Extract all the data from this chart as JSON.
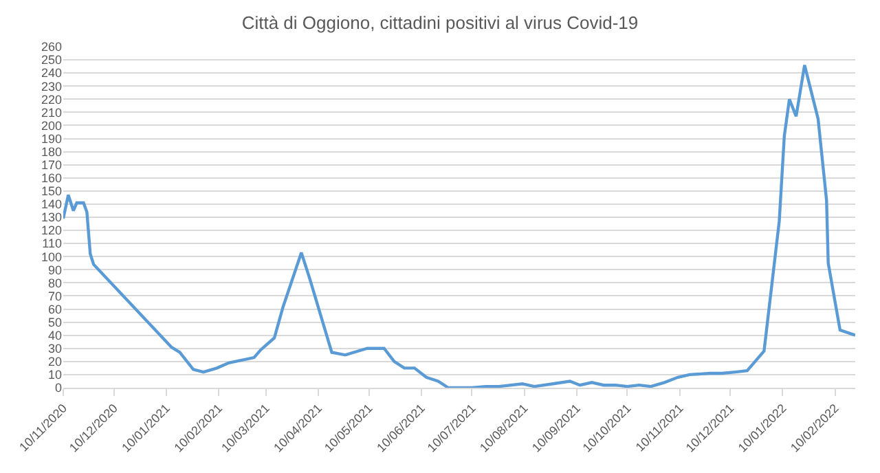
{
  "chart_data": {
    "type": "line",
    "title": "Città di Oggiono, cittadini positivi al virus Covid-19",
    "x": [
      "2020-11-10",
      "2020-11-13",
      "2020-11-16",
      "2020-11-18",
      "2020-11-22",
      "2020-11-24",
      "2020-11-26",
      "2020-11-28",
      "2021-01-13",
      "2021-01-18",
      "2021-01-26",
      "2021-02-01",
      "2021-02-09",
      "2021-02-16",
      "2021-03-03",
      "2021-03-07",
      "2021-03-15",
      "2021-03-20",
      "2021-03-31",
      "2021-04-05",
      "2021-04-18",
      "2021-04-26",
      "2021-05-09",
      "2021-05-19",
      "2021-05-25",
      "2021-05-31",
      "2021-06-06",
      "2021-06-13",
      "2021-06-20",
      "2021-06-26",
      "2021-07-10",
      "2021-07-18",
      "2021-07-26",
      "2021-08-09",
      "2021-08-16",
      "2021-08-27",
      "2021-09-06",
      "2021-09-12",
      "2021-09-19",
      "2021-09-26",
      "2021-10-03",
      "2021-10-10",
      "2021-10-17",
      "2021-10-24",
      "2021-11-01",
      "2021-11-09",
      "2021-11-16",
      "2021-11-28",
      "2021-12-05",
      "2021-12-13",
      "2021-12-20",
      "2021-12-30",
      "2022-01-04",
      "2022-01-08",
      "2022-01-11",
      "2022-01-14",
      "2022-01-18",
      "2022-01-23",
      "2022-01-31",
      "2022-02-05",
      "2022-02-06",
      "2022-02-13",
      "2022-02-22"
    ],
    "series": [
      {
        "color": "#5b9bd5",
        "values": [
          129,
          147,
          135,
          141,
          141,
          134,
          102,
          94,
          31,
          27,
          14,
          12,
          15,
          19,
          23,
          29,
          38,
          61,
          103,
          83,
          27,
          25,
          30,
          30,
          20,
          15,
          15,
          8,
          5,
          0,
          0,
          1,
          1,
          3,
          1,
          3,
          5,
          2,
          4,
          2,
          2,
          1,
          2,
          1,
          4,
          8,
          10,
          11,
          11,
          12,
          13,
          28,
          83,
          127,
          192,
          220,
          207,
          246,
          205,
          143,
          95,
          44,
          40
        ]
      }
    ],
    "xlim": [
      "2020-11-10",
      "2022-02-22"
    ],
    "xticks": [
      {
        "value": "2020-11-10",
        "label": "10/11/2020"
      },
      {
        "value": "2020-12-10",
        "label": "10/12/2020"
      },
      {
        "value": "2021-01-10",
        "label": "10/01/2021"
      },
      {
        "value": "2021-02-10",
        "label": "10/02/2021"
      },
      {
        "value": "2021-03-10",
        "label": "10/03/2021"
      },
      {
        "value": "2021-04-10",
        "label": "10/04/2021"
      },
      {
        "value": "2021-05-10",
        "label": "10/05/2021"
      },
      {
        "value": "2021-06-10",
        "label": "10/06/2021"
      },
      {
        "value": "2021-07-10",
        "label": "10/07/2021"
      },
      {
        "value": "2021-08-10",
        "label": "10/08/2021"
      },
      {
        "value": "2021-09-10",
        "label": "10/09/2021"
      },
      {
        "value": "2021-10-10",
        "label": "10/10/2021"
      },
      {
        "value": "2021-11-10",
        "label": "10/11/2021"
      },
      {
        "value": "2021-12-10",
        "label": "10/12/2021"
      },
      {
        "value": "2022-01-10",
        "label": "10/01/2022"
      },
      {
        "value": "2022-02-10",
        "label": "10/02/2022"
      }
    ],
    "ylim": [
      0,
      260
    ],
    "yticks": [
      0,
      10,
      20,
      30,
      40,
      50,
      60,
      70,
      80,
      90,
      100,
      110,
      120,
      130,
      140,
      150,
      160,
      170,
      180,
      190,
      200,
      210,
      220,
      230,
      240,
      250,
      260
    ],
    "grid": "y",
    "marker": "none",
    "line_style": "solid"
  }
}
